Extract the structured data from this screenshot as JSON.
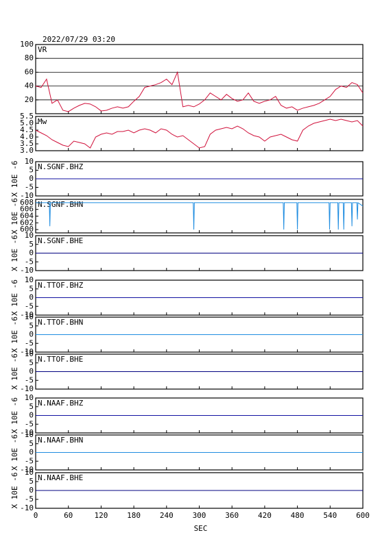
{
  "title": "2022/07/29 03:20",
  "chart_data": [
    {
      "type": "line",
      "title": "VR",
      "grid": true,
      "xlim": [
        0,
        600
      ],
      "xticks": [
        0,
        60,
        120,
        180,
        240,
        300,
        360,
        420,
        480,
        540,
        600
      ],
      "ylim": [
        0,
        100
      ],
      "yticks": [
        20,
        40,
        60,
        80,
        100
      ],
      "x": [
        0,
        10,
        20,
        30,
        40,
        50,
        60,
        70,
        80,
        90,
        100,
        110,
        120,
        130,
        140,
        150,
        160,
        170,
        180,
        190,
        200,
        210,
        220,
        230,
        240,
        250,
        260,
        270,
        280,
        290,
        300,
        310,
        320,
        330,
        340,
        350,
        360,
        370,
        380,
        390,
        400,
        410,
        420,
        430,
        440,
        450,
        460,
        470,
        480,
        490,
        500,
        510,
        520,
        530,
        540,
        550,
        560,
        570,
        580,
        590,
        600
      ],
      "series": [
        {
          "color": "#d0103a",
          "values": [
            40,
            38,
            50,
            15,
            20,
            5,
            3,
            8,
            12,
            15,
            14,
            10,
            4,
            5,
            8,
            10,
            8,
            10,
            18,
            25,
            38,
            40,
            42,
            45,
            50,
            42,
            60,
            10,
            12,
            10,
            14,
            20,
            30,
            25,
            20,
            28,
            22,
            18,
            20,
            30,
            18,
            15,
            18,
            20,
            25,
            12,
            8,
            10,
            5,
            8,
            10,
            12,
            15,
            20,
            25,
            35,
            40,
            38,
            45,
            42,
            30
          ]
        }
      ]
    },
    {
      "type": "line",
      "title": "Mw",
      "xlim": [
        0,
        600
      ],
      "xticks": [
        0,
        60,
        120,
        180,
        240,
        300,
        360,
        420,
        480,
        540,
        600
      ],
      "ylim": [
        3,
        5.5
      ],
      "yticks": [
        {
          "value": 3,
          "label": "3.0"
        },
        {
          "value": 3.5,
          "label": "3.5"
        },
        {
          "value": 4,
          "label": "4.0"
        },
        {
          "value": 4.5,
          "label": "4.5"
        },
        {
          "value": 5,
          "label": "5.0"
        },
        {
          "value": 5.5,
          "label": "5.5"
        }
      ],
      "x": [
        0,
        10,
        20,
        30,
        40,
        50,
        60,
        70,
        80,
        90,
        100,
        110,
        120,
        130,
        140,
        150,
        160,
        170,
        180,
        190,
        200,
        210,
        220,
        230,
        240,
        250,
        260,
        270,
        280,
        290,
        300,
        310,
        320,
        330,
        340,
        350,
        360,
        370,
        380,
        390,
        400,
        410,
        420,
        430,
        440,
        450,
        460,
        470,
        480,
        490,
        500,
        510,
        520,
        530,
        540,
        550,
        560,
        570,
        580,
        590,
        600
      ],
      "series": [
        {
          "color": "#d0103a",
          "values": [
            4.5,
            4.3,
            4.1,
            3.8,
            3.6,
            3.4,
            3.3,
            3.7,
            3.6,
            3.5,
            3.2,
            4.0,
            4.2,
            4.3,
            4.2,
            4.4,
            4.4,
            4.5,
            4.3,
            4.5,
            4.6,
            4.5,
            4.3,
            4.6,
            4.5,
            4.2,
            4.0,
            4.1,
            3.8,
            3.5,
            3.2,
            3.3,
            4.2,
            4.5,
            4.6,
            4.7,
            4.6,
            4.8,
            4.6,
            4.3,
            4.1,
            4.0,
            3.7,
            4.0,
            4.1,
            4.2,
            4.0,
            3.8,
            3.7,
            4.5,
            4.8,
            5.0,
            5.1,
            5.2,
            5.3,
            5.2,
            5.3,
            5.2,
            5.1,
            5.2,
            4.8
          ]
        }
      ]
    },
    {
      "type": "line",
      "title": "N.SGNF.BHZ",
      "ylabel": "X 10E -6",
      "xlim": [
        0,
        600
      ],
      "xticks": [
        0,
        60,
        120,
        180,
        240,
        300,
        360,
        420,
        480,
        540,
        600
      ],
      "ylim": [
        -10,
        10
      ],
      "yticks": [
        -10,
        -5,
        0,
        5,
        10
      ],
      "x": [
        0,
        100,
        200,
        300,
        400,
        500,
        600
      ],
      "series": [
        {
          "color": "#1010a0",
          "values": [
            0,
            0,
            0,
            0,
            0,
            0,
            0
          ]
        }
      ]
    },
    {
      "type": "line",
      "title": "N.SGNF.BHN",
      "ylabel": "X 10E -6",
      "xlim": [
        0,
        600
      ],
      "xticks": [
        0,
        60,
        120,
        180,
        240,
        300,
        360,
        420,
        480,
        540,
        600
      ],
      "ylim": [
        599,
        609
      ],
      "yticks": [
        600,
        602,
        604,
        606,
        608
      ],
      "x": [
        0,
        25,
        26,
        27,
        289,
        290,
        291,
        454,
        455,
        456,
        479,
        480,
        481,
        538,
        539,
        540,
        554,
        555,
        556,
        564,
        565,
        566,
        579,
        580,
        581,
        589,
        590,
        591,
        600
      ],
      "series": [
        {
          "color": "#1e8ce0",
          "values": [
            608,
            608,
            601,
            608,
            608,
            600,
            608,
            608,
            600,
            608,
            608,
            600,
            608,
            608,
            600,
            608,
            608,
            600,
            608,
            608,
            600,
            608,
            608,
            601,
            608,
            608,
            603,
            608,
            607
          ]
        }
      ]
    },
    {
      "type": "line",
      "title": "N.SGNF.BHE",
      "ylabel": "X 10E -6",
      "xlim": [
        0,
        600
      ],
      "xticks": [
        0,
        60,
        120,
        180,
        240,
        300,
        360,
        420,
        480,
        540,
        600
      ],
      "ylim": [
        -10,
        10
      ],
      "yticks": [
        -10,
        -5,
        0,
        5,
        10
      ],
      "x": [
        0,
        100,
        200,
        300,
        400,
        500,
        600
      ],
      "series": [
        {
          "color": "#000080",
          "values": [
            0,
            0,
            0,
            0,
            0,
            0,
            0
          ]
        }
      ]
    },
    {
      "type": "line",
      "title": "N.TTOF.BHZ",
      "ylabel": "X 10E -6",
      "xlim": [
        0,
        600
      ],
      "xticks": [
        0,
        60,
        120,
        180,
        240,
        300,
        360,
        420,
        480,
        540,
        600
      ],
      "ylim": [
        -10,
        10
      ],
      "yticks": [
        -10,
        -5,
        0,
        5,
        10
      ],
      "x": [
        0,
        100,
        200,
        300,
        400,
        500,
        600
      ],
      "series": [
        {
          "color": "#1010a0",
          "values": [
            0,
            0,
            0,
            0,
            0,
            0,
            0
          ]
        }
      ]
    },
    {
      "type": "line",
      "title": "N.TTOF.BHN",
      "ylabel": "X 10E -6",
      "xlim": [
        0,
        600
      ],
      "xticks": [
        0,
        60,
        120,
        180,
        240,
        300,
        360,
        420,
        480,
        540,
        600
      ],
      "ylim": [
        -10,
        10
      ],
      "yticks": [
        -10,
        -5,
        0,
        5,
        10
      ],
      "x": [
        0,
        100,
        200,
        300,
        400,
        500,
        600
      ],
      "series": [
        {
          "color": "#1e8ce0",
          "values": [
            0,
            0,
            0,
            0,
            0,
            0,
            0
          ]
        }
      ]
    },
    {
      "type": "line",
      "title": "N.TTOF.BHE",
      "ylabel": "X 10E -6",
      "xlim": [
        0,
        600
      ],
      "xticks": [
        0,
        60,
        120,
        180,
        240,
        300,
        360,
        420,
        480,
        540,
        600
      ],
      "ylim": [
        -10,
        10
      ],
      "yticks": [
        -10,
        -5,
        0,
        5,
        10
      ],
      "x": [
        0,
        100,
        200,
        300,
        400,
        500,
        600
      ],
      "series": [
        {
          "color": "#000080",
          "values": [
            0,
            0,
            0,
            0,
            0,
            0,
            0
          ]
        }
      ]
    },
    {
      "type": "line",
      "title": "N.NAAF.BHZ",
      "ylabel": "X 10E -6",
      "xlim": [
        0,
        600
      ],
      "xticks": [
        0,
        60,
        120,
        180,
        240,
        300,
        360,
        420,
        480,
        540,
        600
      ],
      "ylim": [
        -10,
        10
      ],
      "yticks": [
        -10,
        -5,
        0,
        5,
        10
      ],
      "x": [
        0,
        100,
        200,
        300,
        400,
        500,
        600
      ],
      "series": [
        {
          "color": "#1010a0",
          "values": [
            0,
            0,
            0,
            0,
            0,
            0,
            0
          ]
        }
      ]
    },
    {
      "type": "line",
      "title": "N.NAAF.BHN",
      "ylabel": "X 10E -6",
      "xlim": [
        0,
        600
      ],
      "xticks": [
        0,
        60,
        120,
        180,
        240,
        300,
        360,
        420,
        480,
        540,
        600
      ],
      "ylim": [
        -10,
        10
      ],
      "yticks": [
        -10,
        -5,
        0,
        5,
        10
      ],
      "x": [
        0,
        100,
        200,
        300,
        400,
        500,
        600
      ],
      "series": [
        {
          "color": "#1e8ce0",
          "values": [
            0,
            0,
            0,
            0,
            0,
            0,
            0
          ]
        }
      ]
    },
    {
      "type": "line",
      "title": "N.NAAF.BHE",
      "ylabel": "X 10E -6",
      "xlabel": "SEC",
      "xlim": [
        0,
        600
      ],
      "xticks": [
        0,
        60,
        120,
        180,
        240,
        300,
        360,
        420,
        480,
        540,
        600
      ],
      "ylim": [
        -10,
        10
      ],
      "yticks": [
        -10,
        -5,
        0,
        5,
        10
      ],
      "x": [
        0,
        100,
        200,
        300,
        400,
        500,
        600
      ],
      "series": [
        {
          "color": "#000080",
          "values": [
            0,
            0,
            0,
            0,
            0,
            0,
            0
          ]
        }
      ]
    }
  ]
}
